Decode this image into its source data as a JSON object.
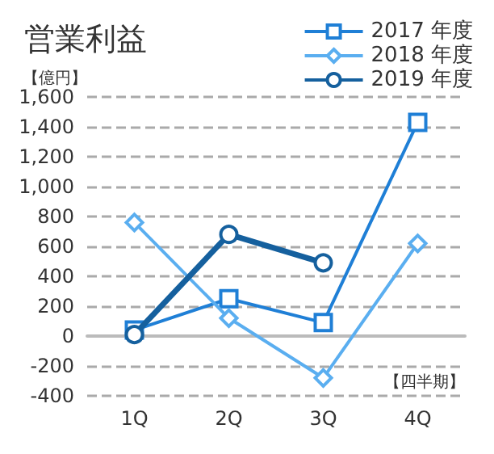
{
  "chart_data": {
    "type": "line",
    "title": "営業利益",
    "ylabel": "【億円】",
    "xlabel": "【四半期】",
    "categories": [
      "1Q",
      "2Q",
      "3Q",
      "4Q"
    ],
    "series": [
      {
        "name": "2017 年度",
        "color": "#1f7fd6",
        "marker": "square",
        "values": [
          40,
          250,
          90,
          1430
        ]
      },
      {
        "name": "2018 年度",
        "color": "#5aaef0",
        "marker": "diamond",
        "values": [
          760,
          120,
          -280,
          620
        ]
      },
      {
        "name": "2019 年度",
        "color": "#15609e",
        "marker": "circle",
        "values": [
          10,
          680,
          490,
          null
        ]
      }
    ],
    "ylim": [
      -400,
      1600
    ],
    "yticks": [
      {
        "value": -400,
        "label": "-400"
      },
      {
        "value": -200,
        "label": "-200"
      },
      0,
      200,
      400,
      600,
      800,
      {
        "value": 1000,
        "label": "1,000"
      },
      {
        "value": 1200,
        "label": "1,200"
      },
      {
        "value": 1400,
        "label": "1,400"
      },
      {
        "value": 1600,
        "label": "1,600"
      }
    ],
    "grid": "y",
    "legend": "top right"
  }
}
